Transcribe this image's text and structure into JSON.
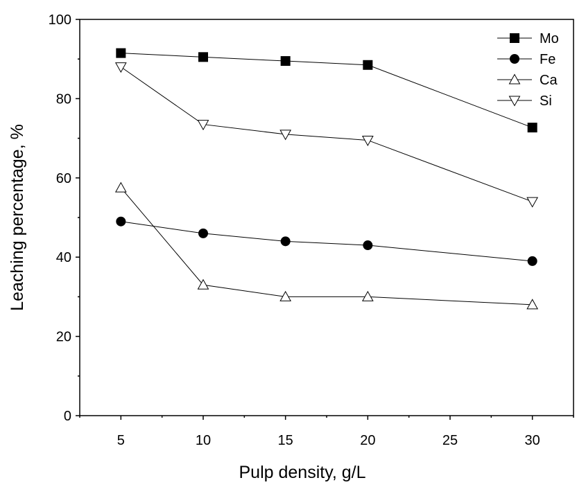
{
  "chart_data": {
    "type": "line",
    "title": "",
    "xlabel": "Pulp density, g/L",
    "ylabel": "Leaching percentage, %",
    "xlim": [
      2.5,
      32.5
    ],
    "ylim": [
      0,
      100
    ],
    "xticks": [
      5,
      10,
      15,
      20,
      25,
      30
    ],
    "yticks": [
      0,
      20,
      40,
      60,
      80,
      100
    ],
    "grid": false,
    "legend_position": "top-right",
    "x": [
      5,
      10,
      15,
      20,
      30
    ],
    "series": [
      {
        "name": "Mo",
        "marker": "square-filled",
        "values": [
          91.5,
          90.5,
          89.5,
          88.5,
          72.7
        ]
      },
      {
        "name": "Fe",
        "marker": "circle-filled",
        "values": [
          49.0,
          46.0,
          44.0,
          43.0,
          39.0
        ]
      },
      {
        "name": "Ca",
        "marker": "triangle-up-open",
        "values": [
          57.5,
          33.0,
          30.0,
          30.0,
          28.0
        ]
      },
      {
        "name": "Si",
        "marker": "triangle-down-open",
        "values": [
          88.0,
          73.5,
          71.0,
          69.5,
          54.0
        ]
      }
    ]
  }
}
